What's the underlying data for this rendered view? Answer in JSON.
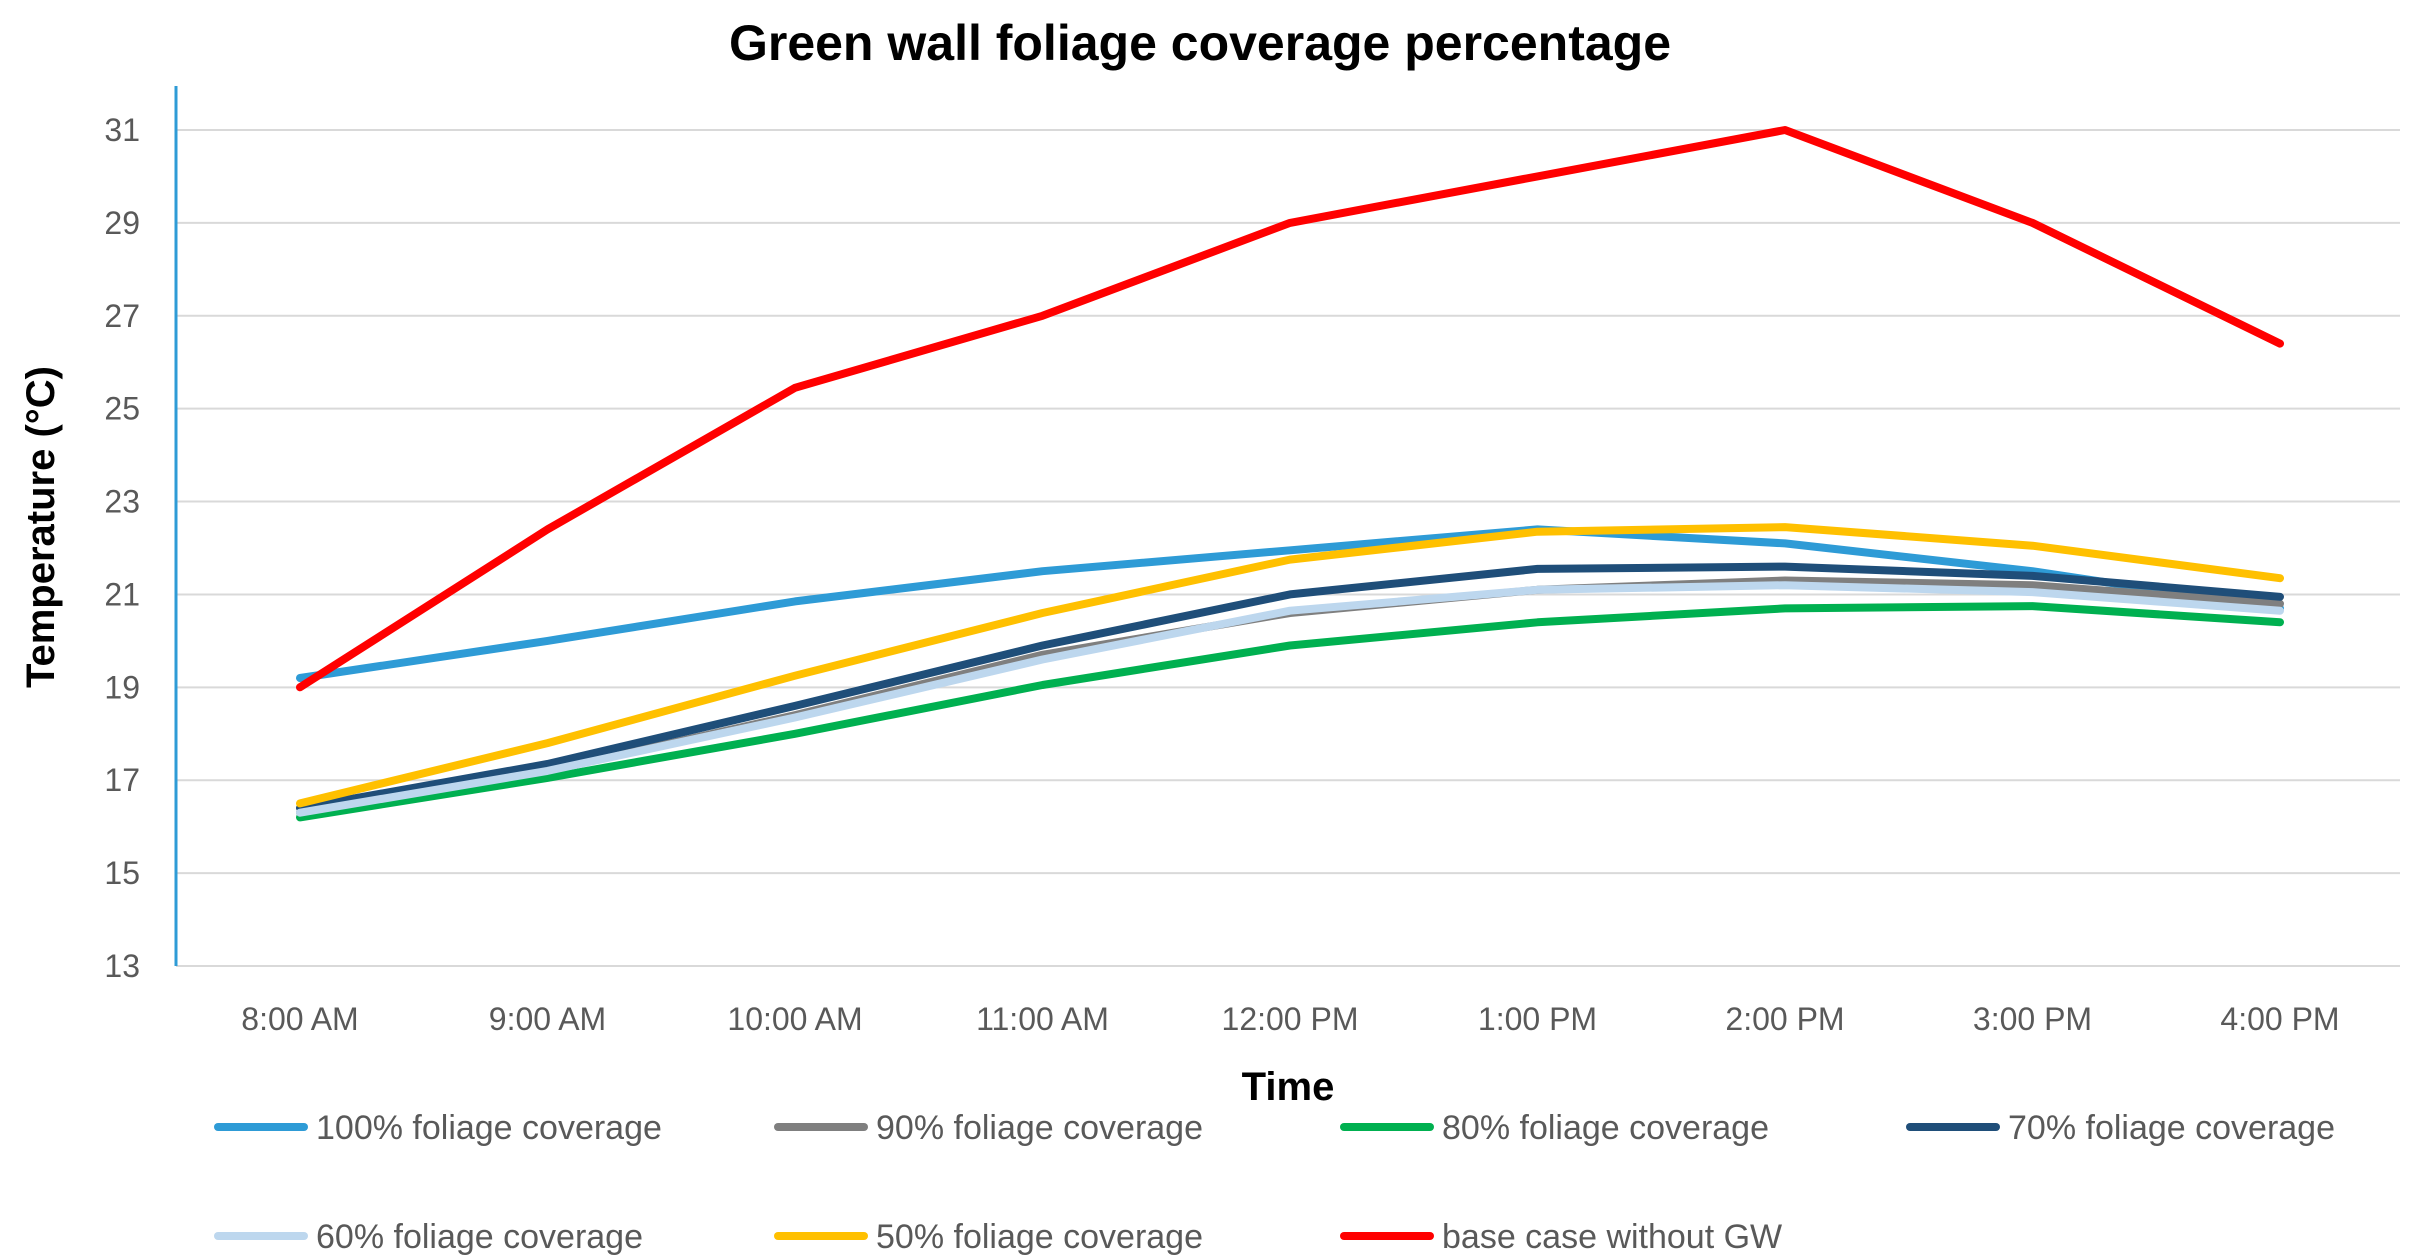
{
  "chart_data": {
    "type": "line",
    "title": "Green wall foliage coverage percentage",
    "xlabel": "Time",
    "ylabel": "Temperature (°C)",
    "ylim": [
      13,
      32
    ],
    "yticks": [
      13,
      15,
      17,
      19,
      21,
      23,
      25,
      27,
      29,
      31
    ],
    "grid": true,
    "legend_position": "bottom",
    "categories": [
      "8:00 AM",
      "9:00 AM",
      "10:00 AM",
      "11:00 AM",
      "12:00 PM",
      "1:00 PM",
      "2:00 PM",
      "3:00 PM",
      "4:00 PM"
    ],
    "series": [
      {
        "name": "100% foliage coverage",
        "color": "#2e9bd6",
        "values": [
          19.2,
          20.0,
          20.85,
          21.5,
          21.95,
          22.4,
          22.1,
          21.5,
          20.7
        ]
      },
      {
        "name": "90% foliage coverage",
        "color": "#7f7f7f",
        "values": [
          16.3,
          17.2,
          18.4,
          19.7,
          20.6,
          21.1,
          21.3,
          21.2,
          20.8
        ]
      },
      {
        "name": "80% foliage coverage",
        "color": "#00b050",
        "values": [
          16.2,
          17.05,
          18.0,
          19.05,
          19.9,
          20.4,
          20.7,
          20.75,
          20.4
        ]
      },
      {
        "name": "70% foliage coverage",
        "color": "#1f4e79",
        "values": [
          16.4,
          17.35,
          18.6,
          19.9,
          21.0,
          21.55,
          21.6,
          21.4,
          20.95
        ]
      },
      {
        "name": "60% foliage coverage",
        "color": "#bdd7ee",
        "values": [
          16.3,
          17.2,
          18.35,
          19.6,
          20.65,
          21.1,
          21.2,
          21.05,
          20.65
        ]
      },
      {
        "name": "50% foliage coverage",
        "color": "#ffc000",
        "values": [
          16.5,
          17.8,
          19.25,
          20.6,
          21.75,
          22.35,
          22.45,
          22.05,
          21.35
        ]
      },
      {
        "name": "base case without GW",
        "color": "#ff0000",
        "values": [
          19.0,
          22.4,
          25.45,
          27.0,
          29.0,
          30.0,
          31.0,
          29.0,
          26.4
        ]
      }
    ]
  }
}
